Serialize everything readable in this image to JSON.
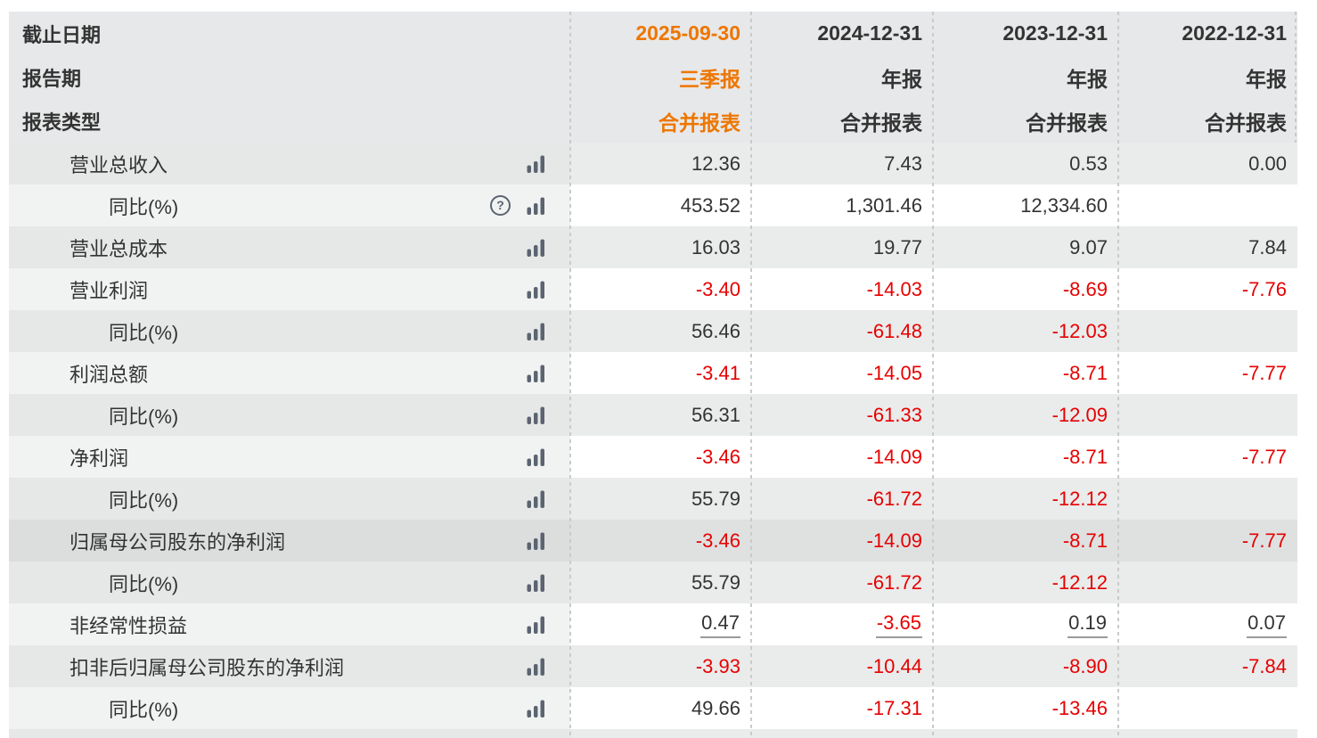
{
  "table": {
    "header_rows": [
      {
        "label": "截止日期",
        "values": [
          "2025-09-30",
          "2024-12-31",
          "2023-12-31",
          "2022-12-31"
        ]
      },
      {
        "label": "报告期",
        "values": [
          "三季报",
          "年报",
          "年报",
          "年报"
        ]
      },
      {
        "label": "报表类型",
        "values": [
          "合并报表",
          "合并报表",
          "合并报表",
          "合并报表"
        ]
      }
    ],
    "rows": [
      {
        "label": "营业总收入",
        "indent": 1,
        "help": false,
        "underline": false,
        "highlighted": false,
        "values": [
          "12.36",
          "7.43",
          "0.53",
          "0.00"
        ]
      },
      {
        "label": "同比(%)",
        "indent": 2,
        "help": true,
        "underline": false,
        "highlighted": false,
        "values": [
          "453.52",
          "1,301.46",
          "12,334.60",
          ""
        ]
      },
      {
        "label": "营业总成本",
        "indent": 1,
        "help": false,
        "underline": false,
        "highlighted": false,
        "values": [
          "16.03",
          "19.77",
          "9.07",
          "7.84"
        ]
      },
      {
        "label": "营业利润",
        "indent": 1,
        "help": false,
        "underline": false,
        "highlighted": false,
        "values": [
          "-3.40",
          "-14.03",
          "-8.69",
          "-7.76"
        ]
      },
      {
        "label": "同比(%)",
        "indent": 2,
        "help": false,
        "underline": false,
        "highlighted": false,
        "values": [
          "56.46",
          "-61.48",
          "-12.03",
          ""
        ]
      },
      {
        "label": "利润总额",
        "indent": 1,
        "help": false,
        "underline": false,
        "highlighted": false,
        "values": [
          "-3.41",
          "-14.05",
          "-8.71",
          "-7.77"
        ]
      },
      {
        "label": "同比(%)",
        "indent": 2,
        "help": false,
        "underline": false,
        "highlighted": false,
        "values": [
          "56.31",
          "-61.33",
          "-12.09",
          ""
        ]
      },
      {
        "label": "净利润",
        "indent": 1,
        "help": false,
        "underline": false,
        "highlighted": false,
        "values": [
          "-3.46",
          "-14.09",
          "-8.71",
          "-7.77"
        ]
      },
      {
        "label": "同比(%)",
        "indent": 2,
        "help": false,
        "underline": false,
        "highlighted": false,
        "values": [
          "55.79",
          "-61.72",
          "-12.12",
          ""
        ]
      },
      {
        "label": "归属母公司股东的净利润",
        "indent": 1,
        "help": false,
        "underline": false,
        "highlighted": true,
        "values": [
          "-3.46",
          "-14.09",
          "-8.71",
          "-7.77"
        ]
      },
      {
        "label": "同比(%)",
        "indent": 2,
        "help": false,
        "underline": false,
        "highlighted": false,
        "values": [
          "55.79",
          "-61.72",
          "-12.12",
          ""
        ]
      },
      {
        "label": "非经常性损益",
        "indent": 1,
        "help": false,
        "underline": true,
        "highlighted": false,
        "values": [
          "0.47",
          "-3.65",
          "0.19",
          "0.07"
        ]
      },
      {
        "label": "扣非后归属母公司股东的净利润",
        "indent": 1,
        "help": false,
        "underline": false,
        "highlighted": false,
        "values": [
          "-3.93",
          "-10.44",
          "-8.90",
          "-7.84"
        ]
      },
      {
        "label": "同比(%)",
        "indent": 2,
        "help": false,
        "underline": false,
        "highlighted": false,
        "values": [
          "49.66",
          "-17.31",
          "-13.46",
          ""
        ]
      }
    ]
  },
  "icons": {
    "bar_chart": "bar-chart-icon",
    "help": "help-icon"
  },
  "colors": {
    "accent_orange": "#ee7600",
    "negative_red": "#e60000",
    "text": "#333333",
    "icon_gray": "#5b6470",
    "separator_dot": "#c9cbca",
    "row_gray": "#eaebeb",
    "row_highlight": "#dfe1e1"
  }
}
